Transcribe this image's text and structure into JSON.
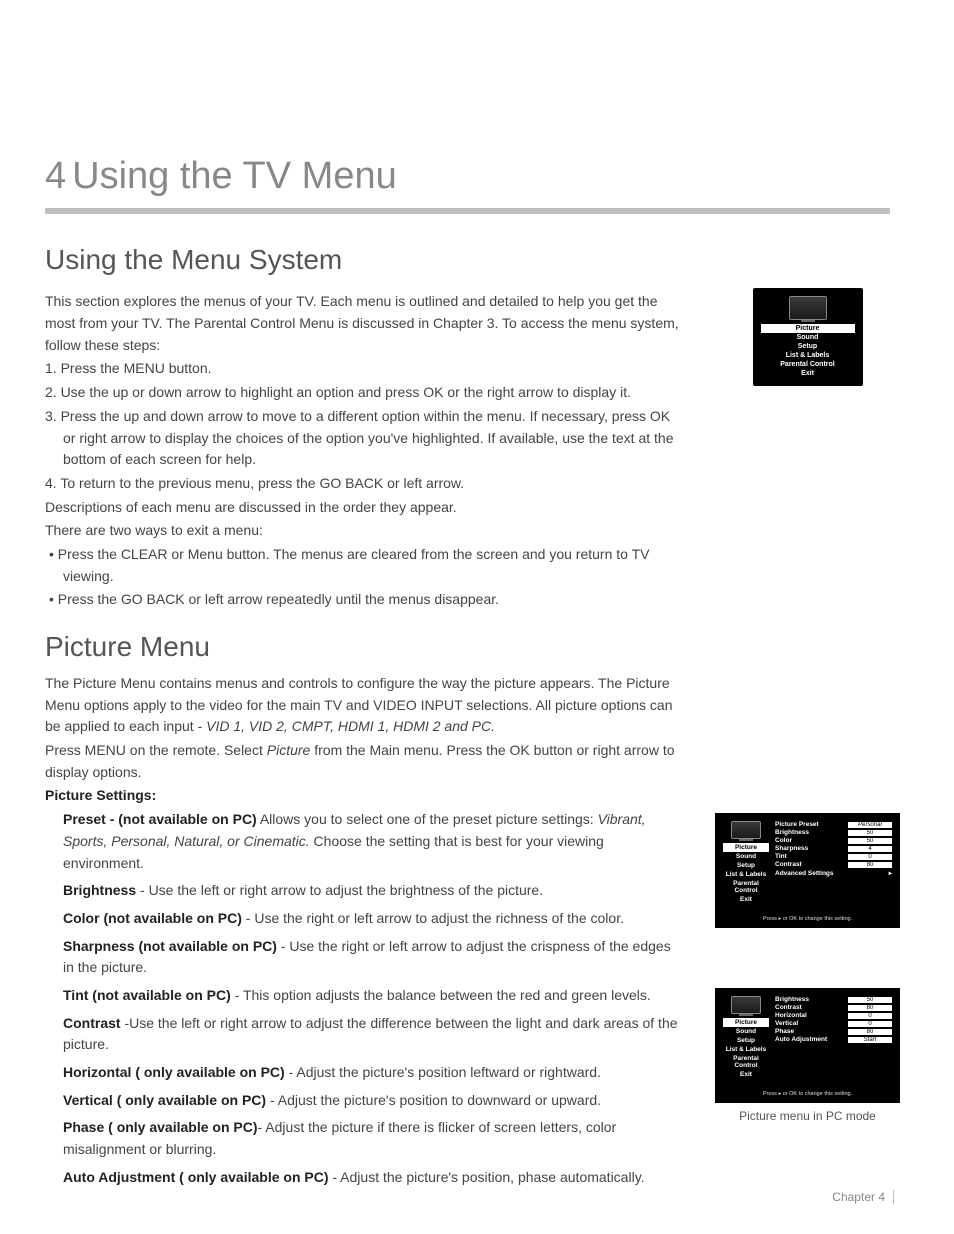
{
  "chapter": {
    "number": "4",
    "title": "Using the TV Menu"
  },
  "section1": {
    "title": "Using the Menu System",
    "intro": "This section explores the menus of your TV. Each menu is outlined and detailed to help you get the most from your TV. The Parental Control Menu is discussed in Chapter 3. To access the menu system, follow these steps:",
    "steps": [
      "Press the MENU button.",
      "Use the up or down arrow to highlight an option and press OK or the right arrow to display it.",
      "Press the up and down arrow to move to a different option within the menu. If necessary, press OK or right arrow to display the choices of the option you've highlighted. If available, use the text at the bottom of each screen for help.",
      "To return to the previous menu, press the GO BACK or left arrow."
    ],
    "after_steps": "Descriptions of each menu are discussed in the order they appear.",
    "exit_intro": "There are two ways to exit a menu:",
    "exit_bullets": [
      "Press the CLEAR or Menu button. The menus are cleared from the screen and you return to TV viewing.",
      "Press the GO BACK or left arrow repeatedly until the menus disappear."
    ]
  },
  "section2": {
    "title": "Picture Menu",
    "p1": "The Picture Menu contains menus and controls to configure the way the picture appears. The Picture Menu options apply to the video for the main TV and VIDEO INPUT selections. All picture options can be applied to each input - ",
    "p1_italic": "VID 1, VID 2, CMPT, HDMI 1, HDMI 2 and PC.",
    "p2a": "Press MENU on the remote. Select ",
    "p2_italic": "Picture",
    "p2b": " from the Main menu. Press the OK button or right arrow to display options.",
    "settings_label": "Picture Settings:",
    "settings": {
      "preset_label": "Preset -  (not available on PC)",
      "preset_text": "  Allows you to select one of the preset picture settings: ",
      "preset_italic": "Vibrant, Sports, Personal, Natural, or Cinematic.",
      "preset_tail": " Choose the setting that is best for your viewing environment.",
      "brightness_label": "Brightness",
      "brightness_text": "  -   Use the left or right arrow to adjust the brightness of the picture.",
      "color_label": "Color  (not available on PC)",
      "color_text": " - Use the right or left arrow to adjust the richness of the color.",
      "sharpness_label": "Sharpness (not available on PC)",
      "sharpness_text": " - Use the right or left arrow to adjust the crispness of the edges in the picture.",
      "tint_label": "Tint (not available on PC)",
      "tint_text": " - This option adjusts the balance between the red and green levels.",
      "contrast_label": "Contrast",
      "contrast_text": " -Use the left or right arrow to adjust the difference between the light and dark areas of the picture.",
      "horizontal_label": "Horizontal ( only available on PC)",
      "horizontal_text": " - Adjust the picture's position leftward or rightward.",
      "vertical_label": "Vertical ( only available on PC)",
      "vertical_text": " - Adjust the picture's position to downward or upward.",
      "phase_label": "Phase ( only available on PC)",
      "phase_text": "- Adjust the picture if there is flicker of screen letters, color misalignment or blurring.",
      "auto_label": "Auto Adjustment ( only available on PC)",
      "auto_text": " - Adjust the picture's position, phase automatically."
    }
  },
  "main_menu": {
    "items": [
      "Picture",
      "Sound",
      "Setup",
      "List & Labels",
      "Parental Control",
      "Exit"
    ],
    "selected_index": 0
  },
  "picture_menu_detail": {
    "left_items": [
      "Picture",
      "Sound",
      "Setup",
      "List & Labels",
      "Parental Control",
      "Exit"
    ],
    "selected_index": 0,
    "rows": [
      {
        "label": "Picture Preset",
        "value": "Personal",
        "italic": true
      },
      {
        "label": "Brightness",
        "value": "50"
      },
      {
        "label": "Color",
        "value": "50"
      },
      {
        "label": "Sharpness",
        "value": "4"
      },
      {
        "label": "Tint",
        "value": "0"
      },
      {
        "label": "Contrast",
        "value": "80"
      },
      {
        "label": "Advanced Settings",
        "value": "",
        "arrow": true
      }
    ],
    "footer": "Press ▸ or OK to change this setting."
  },
  "pc_menu_detail": {
    "left_items": [
      "Picture",
      "Sound",
      "Setup",
      "List & Labels",
      "Parental Control",
      "Exit"
    ],
    "selected_index": 0,
    "rows": [
      {
        "label": "Brightness",
        "value": "50"
      },
      {
        "label": "Contrast",
        "value": "80"
      },
      {
        "label": "Horizontal",
        "value": "0"
      },
      {
        "label": "Vertical",
        "value": "0"
      },
      {
        "label": "Phase",
        "value": "80"
      },
      {
        "label": "Auto Adjustment",
        "value": "Start",
        "italic": true
      }
    ],
    "footer": "Press ▸ or OK to change this setting.",
    "caption": "Picture menu in PC mode"
  },
  "footer": {
    "text": "Chapter 4"
  },
  "colors": {
    "text": "#444444",
    "heading": "#888888",
    "menu_bg": "#000000",
    "menu_fg": "#ffffff",
    "hr": "#bfbfbf"
  }
}
